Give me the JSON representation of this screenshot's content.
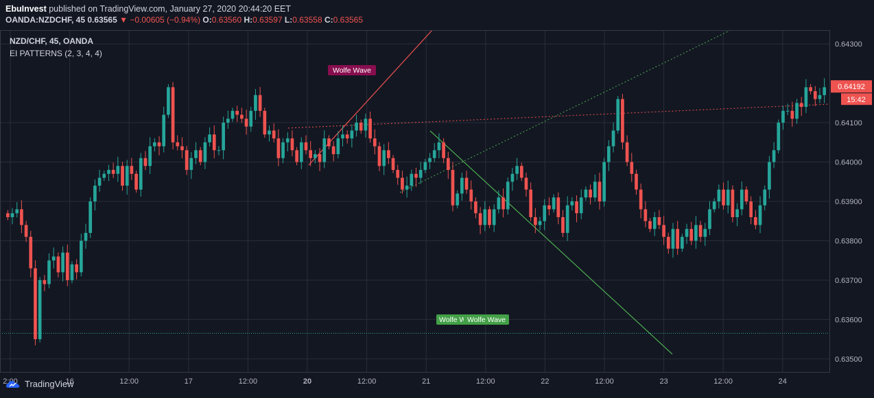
{
  "header": {
    "author": "EbuInvest",
    "published_text": "published on TradingView.com, January 27, 2020 20:44:20 EET",
    "symbol_line": "OANDA:NZDCHF, 45",
    "last": "0.63565",
    "change": "−0.00605 (−0.94%)",
    "o_label": "O:",
    "o_value": "0.63560",
    "h_label": "H:",
    "h_value": "0.63597",
    "l_label": "L:",
    "l_value": "0.63558",
    "c_label": "C:",
    "c_value": "0.63565"
  },
  "legend": {
    "symbol": "NZD/CHF, 45, OANDA",
    "indicator": "EI PATTERNS (2, 3, 4, 4)"
  },
  "footer": {
    "brand": "TradingView"
  },
  "colors": {
    "up": "#26a69a",
    "down": "#ef5350",
    "bg": "#131722",
    "grid": "#2a2e39"
  },
  "chart_data": {
    "type": "candlestick",
    "y_ticks": [
      "0.64300",
      "0.64100",
      "0.64000",
      "0.63900",
      "0.63800",
      "0.63700",
      "0.63600",
      "0.63500"
    ],
    "y_tick_values": [
      0.643,
      0.641,
      0.64,
      0.639,
      0.638,
      0.637,
      0.636,
      0.635
    ],
    "ylim": [
      0.63465,
      0.64335
    ],
    "x_ticks": [
      "2:00",
      "16",
      "12:00",
      "17",
      "12:00",
      "20",
      "12:00",
      "21",
      "12:00",
      "22",
      "12:00",
      "23",
      "12:00",
      "24"
    ],
    "x_tick_bold": [
      false,
      false,
      false,
      false,
      false,
      true,
      false,
      false,
      false,
      false,
      false,
      false,
      false,
      false
    ],
    "price_label": "0.64192",
    "price_value": 0.64192,
    "countdown": "15:42",
    "annotations": [
      {
        "text": "Wolfe Wave",
        "color": "#880e4f"
      },
      {
        "text": "Wolfe Wave",
        "color": "#43a047"
      },
      {
        "text": "Wolfe Wave",
        "color": "#43a047"
      }
    ],
    "horizontal_line": 0.63565,
    "closes": [
      0.6386,
      0.6387,
      0.6388,
      0.6384,
      0.6381,
      0.6373,
      0.6355,
      0.637,
      0.6369,
      0.6375,
      0.6376,
      0.6372,
      0.6377,
      0.637,
      0.6374,
      0.6372,
      0.638,
      0.6382,
      0.639,
      0.6394,
      0.6396,
      0.6397,
      0.6398,
      0.6397,
      0.6399,
      0.6394,
      0.6399,
      0.6397,
      0.6393,
      0.6401,
      0.6399,
      0.6404,
      0.6405,
      0.6404,
      0.6412,
      0.6419,
      0.6405,
      0.6404,
      0.6403,
      0.6398,
      0.6401,
      0.6403,
      0.64,
      0.6405,
      0.6407,
      0.6403,
      0.6403,
      0.641,
      0.6411,
      0.6413,
      0.6412,
      0.6411,
      0.6409,
      0.6413,
      0.6417,
      0.6413,
      0.6407,
      0.6408,
      0.6406,
      0.6401,
      0.6405,
      0.6406,
      0.6403,
      0.64,
      0.6405,
      0.6403,
      0.6401,
      0.6402,
      0.64,
      0.6406,
      0.6404,
      0.6402,
      0.6406,
      0.6407,
      0.6406,
      0.6408,
      0.641,
      0.6408,
      0.6411,
      0.6406,
      0.6404,
      0.6399,
      0.6403,
      0.6401,
      0.6398,
      0.6396,
      0.6393,
      0.6394,
      0.6397,
      0.6396,
      0.6398,
      0.64,
      0.6401,
      0.6403,
      0.6405,
      0.6401,
      0.6398,
      0.6389,
      0.6392,
      0.6396,
      0.6393,
      0.639,
      0.6387,
      0.6384,
      0.6388,
      0.6384,
      0.6388,
      0.6391,
      0.6388,
      0.6395,
      0.6397,
      0.6399,
      0.6396,
      0.6393,
      0.6386,
      0.6384,
      0.6385,
      0.6389,
      0.6388,
      0.6391,
      0.6386,
      0.6382,
      0.6389,
      0.639,
      0.6387,
      0.6391,
      0.6393,
      0.6391,
      0.6395,
      0.639,
      0.64,
      0.6404,
      0.6408,
      0.6416,
      0.6405,
      0.64,
      0.6397,
      0.6393,
      0.6388,
      0.6385,
      0.6383,
      0.6386,
      0.6384,
      0.6381,
      0.6378,
      0.6383,
      0.6378,
      0.6381,
      0.6383,
      0.638,
      0.6384,
      0.6381,
      0.6383,
      0.6388,
      0.639,
      0.6393,
      0.6389,
      0.6393,
      0.6386,
      0.6388,
      0.6393,
      0.639,
      0.6386,
      0.6384,
      0.6389,
      0.6393,
      0.64,
      0.6403,
      0.641,
      0.6413,
      0.6413,
      0.6411,
      0.6415,
      0.6414,
      0.6419,
      0.6418,
      0.6416,
      0.6417,
      0.6419
    ]
  }
}
